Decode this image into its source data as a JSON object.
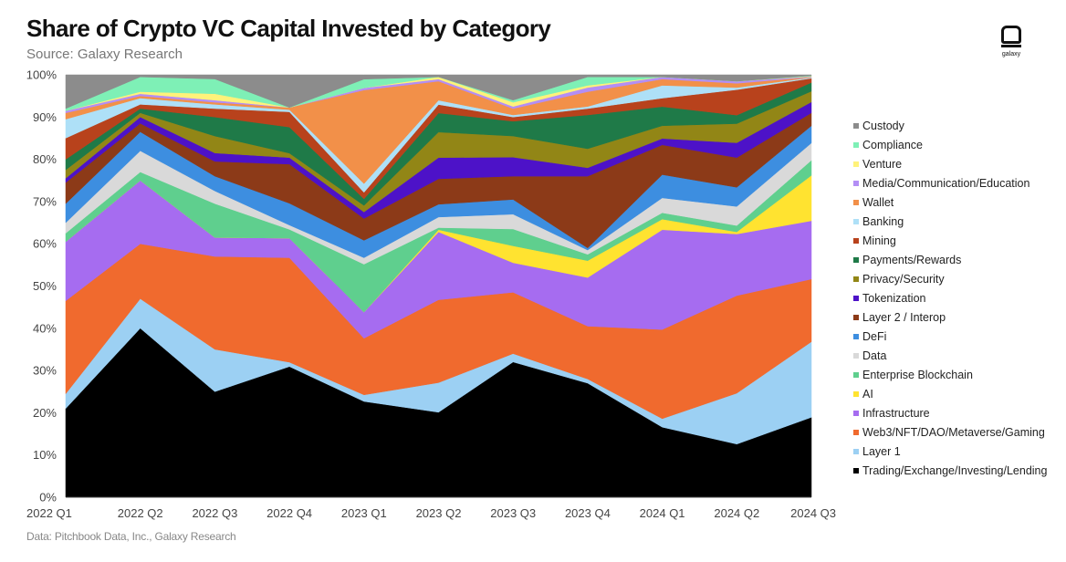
{
  "header": {
    "title": "Share of Crypto VC Capital Invested by Category",
    "subtitle": "Source: Galaxy Research",
    "logo_text": "galaxy"
  },
  "footer": {
    "note": "Data: Pitchbook Data, Inc., Galaxy Research"
  },
  "chart_data": {
    "type": "area",
    "stacked": true,
    "title": "Share of Crypto VC Capital Invested by Category",
    "subtitle": "Source: Galaxy Research",
    "categories": [
      "2022 Q1",
      "2022 Q2",
      "2022 Q3",
      "2022 Q4",
      "2023 Q1",
      "2023 Q2",
      "2023 Q3",
      "2023 Q4",
      "2024 Q1",
      "2024 Q2",
      "2024 Q3"
    ],
    "ylim": [
      0,
      100
    ],
    "yticks": [
      "0%",
      "10%",
      "20%",
      "30%",
      "40%",
      "50%",
      "60%",
      "70%",
      "80%",
      "90%",
      "100%"
    ],
    "legend_position": "right",
    "grid": false,
    "series": [
      {
        "name": "Trading/Exchange/Investing/Lending",
        "color": "#000000",
        "values": [
          21,
          40,
          25,
          30,
          22,
          20,
          32,
          27,
          16.5,
          12.5,
          18.5
        ]
      },
      {
        "name": "Layer 1",
        "color": "#9cd0f3",
        "values": [
          3.5,
          7,
          10,
          1,
          1.5,
          7,
          2,
          1,
          2,
          12,
          17.5
        ]
      },
      {
        "name": "Web3/NFT/DAO/Metaverse/Gaming",
        "color": "#f06a2e",
        "values": [
          22,
          13,
          22,
          24,
          13,
          19.5,
          14.5,
          12.5,
          21,
          23,
          14.5
        ]
      },
      {
        "name": "Infrastructure",
        "color": "#a66cf0",
        "values": [
          14,
          15,
          4.5,
          4.5,
          6,
          16,
          7,
          11.5,
          23.5,
          14.5,
          13.5
        ]
      },
      {
        "name": "AI",
        "color": "#ffe330",
        "values": [
          0,
          0,
          0,
          0,
          0,
          0.5,
          4,
          4,
          2.5,
          0.5,
          10.5
        ]
      },
      {
        "name": "Enterprise Blockchain",
        "color": "#5fcf8e",
        "values": [
          2,
          2,
          8,
          2,
          11,
          0.5,
          4,
          1.5,
          1.5,
          1.5,
          3.5
        ]
      },
      {
        "name": "Data",
        "color": "#d9d9d9",
        "values": [
          2.5,
          5,
          3,
          1,
          1.5,
          2.5,
          3.5,
          1,
          3.5,
          4.5,
          4
        ]
      },
      {
        "name": "DeFi",
        "color": "#3d8ee0",
        "values": [
          4.5,
          4.5,
          3.5,
          5,
          4,
          3,
          3.5,
          0.5,
          5.5,
          4.5,
          4
        ]
      },
      {
        "name": "Layer 2 / Interop",
        "color": "#8c3a18",
        "values": [
          5,
          2,
          3.5,
          9,
          5,
          6,
          5.5,
          17,
          7,
          7,
          3
        ]
      },
      {
        "name": "Tokenization",
        "color": "#4d12c8",
        "values": [
          1,
          1.5,
          2,
          1.5,
          1.5,
          5,
          4.5,
          2,
          1.5,
          3.5,
          2.5
        ]
      },
      {
        "name": "Privacy/Security",
        "color": "#928616",
        "values": [
          2,
          1,
          4,
          1,
          1.5,
          6,
          5,
          4.5,
          3,
          4.5,
          2.5
        ]
      },
      {
        "name": "Payments/Rewards",
        "color": "#1f7a48",
        "values": [
          2.5,
          1,
          4.5,
          6,
          1.5,
          4.5,
          3.5,
          8,
          4.5,
          2,
          2
        ]
      },
      {
        "name": "Mining",
        "color": "#b8421c",
        "values": [
          5,
          1,
          2,
          3.5,
          1.5,
          2,
          1,
          1.5,
          2,
          6,
          1
        ]
      },
      {
        "name": "Banking",
        "color": "#aee0f7",
        "values": [
          4.5,
          1.5,
          1,
          0.5,
          2,
          1,
          0.5,
          0.5,
          3,
          0.5,
          0.2
        ]
      },
      {
        "name": "Wallet",
        "color": "#f29049",
        "values": [
          1.5,
          0.5,
          0.5,
          0.5,
          21.5,
          4.5,
          1.5,
          3.5,
          1.5,
          1,
          0.1
        ]
      },
      {
        "name": "Media/Communication/Education",
        "color": "#b38ef5",
        "values": [
          0.5,
          0.5,
          0.5,
          0,
          0.5,
          0.5,
          0.5,
          1,
          0.5,
          0.5,
          0.1
        ]
      },
      {
        "name": "Venture",
        "color": "#fff27a",
        "values": [
          0,
          0.5,
          1.5,
          0,
          0,
          0.5,
          1,
          0.5,
          0,
          0,
          0.1
        ]
      },
      {
        "name": "Compliance",
        "color": "#7ef0b6",
        "values": [
          0.5,
          3.5,
          3.5,
          0,
          2,
          0,
          0.5,
          2,
          0,
          0,
          0.1
        ]
      },
      {
        "name": "Custody",
        "color": "#8c8c8c",
        "values": [
          8,
          0.5,
          1,
          7.5,
          1,
          0.5,
          6,
          0.5,
          0.5,
          1.5,
          0.2
        ]
      }
    ]
  }
}
